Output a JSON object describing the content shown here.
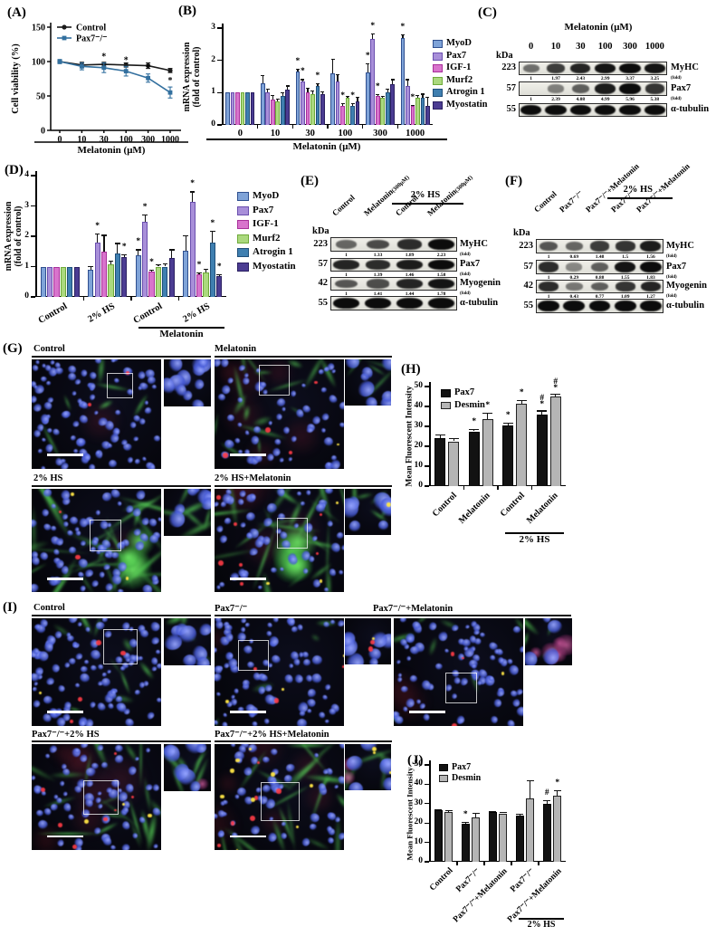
{
  "figure": {
    "panels": {
      "A": {
        "label": "(A)",
        "chart_data": {
          "type": "line",
          "ylabel": "Cell viability (%)",
          "xlabel": "Melatonin (μM)",
          "ylim": [
            0,
            150
          ],
          "yticks": [
            0,
            50,
            100,
            150
          ],
          "x_labels": [
            "0",
            "10",
            "30",
            "100",
            "300",
            "1000"
          ],
          "series": [
            {
              "name": "Control",
              "color": "#1a1a1a",
              "marker": "circle",
              "values": [
                100,
                95,
                96,
                95,
                94,
                87
              ],
              "err": [
                2,
                4,
                3,
                3,
                4,
                3
              ]
            },
            {
              "name": "Pax7⁻/⁻",
              "color": "#33709f",
              "marker": "square",
              "values": [
                100,
                93,
                91,
                86,
                76,
                55
              ],
              "err": [
                3,
                5,
                7,
                7,
                6,
                8
              ],
              "sig": [
                null,
                null,
                "*",
                "*",
                "*",
                "*"
              ]
            }
          ]
        }
      },
      "B": {
        "label": "(B)",
        "chart_data": {
          "type": "grouped_bar",
          "ylabel_lines": [
            "mRNA expression",
            "(fold of control)"
          ],
          "xlabel": "Melatonin (μM)",
          "ylim": [
            0,
            3
          ],
          "yticks": [
            0,
            1,
            2,
            3
          ],
          "series": [
            {
              "name": "MyoD",
              "fill": "#7fa3d8",
              "border": "#2f4f8f"
            },
            {
              "name": "Pax7",
              "fill": "#a88fd9",
              "border": "#6a4fae"
            },
            {
              "name": "IGF-1",
              "fill": "#d873cc",
              "border": "#a8309a"
            },
            {
              "name": "Murf2",
              "fill": "#abd97e",
              "border": "#6faa3a"
            },
            {
              "name": "Atrogin 1",
              "fill": "#3f7fb0",
              "border": "#1f4f7a"
            },
            {
              "name": "Myostatin",
              "fill": "#4b3c92",
              "border": "#2a1f60"
            }
          ],
          "groups": [
            {
              "label": "0",
              "values": [
                1,
                1,
                1,
                1,
                1,
                1
              ],
              "err": [
                0,
                0,
                0,
                0,
                0,
                0
              ]
            },
            {
              "label": "10",
              "values": [
                1.3,
                1.0,
                0.78,
                0.72,
                0.9,
                1.1
              ],
              "err": [
                0.25,
                0.12,
                0.15,
                0.1,
                0.12,
                0.12
              ]
            },
            {
              "label": "30",
              "values": [
                1.65,
                1.35,
                1.0,
                0.95,
                1.2,
                0.95
              ],
              "err": [
                0.1,
                0.07,
                0.15,
                0.12,
                0.1,
                0.1
              ],
              "sig": [
                "*",
                "*",
                null,
                null,
                "*",
                null
              ]
            },
            {
              "label": "100",
              "values": [
                1.6,
                1.35,
                0.6,
                0.83,
                0.6,
                0.73
              ],
              "err": [
                0.45,
                0.22,
                0.08,
                0.08,
                0.07,
                0.15
              ],
              "sig": [
                null,
                null,
                "*",
                null,
                "*",
                null
              ]
            },
            {
              "label": "300",
              "values": [
                1.62,
                2.65,
                0.9,
                0.83,
                1.02,
                1.27
              ],
              "err": [
                0.3,
                0.18,
                0.06,
                0.08,
                0.1,
                0.15
              ],
              "sig": [
                "*",
                "*",
                "*",
                null,
                null,
                null
              ]
            },
            {
              "label": "1000",
              "values": [
                2.7,
                1.2,
                0.58,
                0.83,
                0.85,
                0.58
              ],
              "err": [
                0.1,
                0.22,
                0.05,
                0.1,
                0.12,
                0.3
              ],
              "sig": [
                "*",
                null,
                "*",
                null,
                null,
                null
              ]
            }
          ]
        }
      },
      "C": {
        "label": "(C)",
        "blot": {
          "header_title": "Melatonin (μM)",
          "kda_label": "kDa",
          "fold_label": "(fold)",
          "lanes": [
            "0",
            "10",
            "30",
            "100",
            "300",
            "1000"
          ],
          "rows": [
            {
              "kda": "223",
              "label": "MyHC",
              "intensity": [
                0.4,
                0.7,
                0.85,
                0.95,
                1,
                0.95
              ],
              "folds": [
                "1",
                "1.97",
                "2.43",
                "2.99",
                "3.37",
                "3.25"
              ]
            },
            {
              "kda": "57",
              "label": "Pax7",
              "intensity": [
                0.04,
                0.3,
                0.5,
                0.9,
                1,
                0.75
              ],
              "folds": [
                "1",
                "2.39",
                "4.08",
                "4.99",
                "5.96",
                "5.38"
              ]
            },
            {
              "kda": "55",
              "label": "α-tubulin",
              "intensity": [
                1,
                1,
                1,
                1,
                1,
                1
              ],
              "folds": null
            }
          ]
        }
      },
      "D": {
        "label": "(D)",
        "chart_data": {
          "type": "grouped_bar",
          "ylabel_lines": [
            "mRNA expression",
            "(fold of control)"
          ],
          "ylim": [
            0,
            4
          ],
          "yticks": [
            0,
            1,
            2,
            3,
            4
          ],
          "series": [
            {
              "name": "MyoD",
              "fill": "#7fa3d8",
              "border": "#2f4f8f"
            },
            {
              "name": "Pax7",
              "fill": "#a88fd9",
              "border": "#6a4fae"
            },
            {
              "name": "IGF-1",
              "fill": "#d873cc",
              "border": "#a8309a"
            },
            {
              "name": "Murf2",
              "fill": "#abd97e",
              "border": "#6faa3a"
            },
            {
              "name": "Atrogin 1",
              "fill": "#3f7fb0",
              "border": "#1f4f7a"
            },
            {
              "name": "Myostatin",
              "fill": "#4b3c92",
              "border": "#2a1f60"
            }
          ],
          "groups": [
            {
              "label": "Control",
              "values": [
                1,
                1,
                1,
                1,
                1,
                1
              ],
              "err": [
                0,
                0,
                0,
                0,
                0,
                0
              ]
            },
            {
              "label": "2% HS",
              "values": [
                0.9,
                1.8,
                1.5,
                1.07,
                1.43,
                1.3
              ],
              "err": [
                0.12,
                0.3,
                0.55,
                0.12,
                0.35,
                0.1
              ],
              "sig": [
                null,
                "*",
                null,
                null,
                null,
                "*"
              ]
            },
            {
              "label": "Control",
              "values": [
                1.37,
                2.48,
                0.83,
                1.0,
                1.0,
                1.27
              ],
              "err": [
                0.2,
                0.25,
                0.08,
                0.08,
                0.1,
                0.3
              ],
              "sig": [
                "*",
                "*",
                "*",
                null,
                null,
                null
              ]
            },
            {
              "label": "2% HS",
              "values": [
                1.53,
                3.13,
                0.75,
                0.82,
                1.78,
                0.7
              ],
              "err": [
                0.5,
                0.35,
                0.05,
                0.1,
                0.4,
                0.06
              ],
              "sig": [
                null,
                "*",
                "*",
                null,
                "*",
                "*"
              ]
            }
          ],
          "bracket": {
            "label": "Melatonin",
            "from": 2,
            "to": 3
          }
        }
      },
      "E": {
        "label": "(E)",
        "blot": {
          "kda_label": "kDa",
          "fold_label": "(fold)",
          "bracket": {
            "label": "2% HS",
            "from": 2,
            "to": 3
          },
          "lanes": [
            {
              "t": "Control"
            },
            {
              "t": "Melatonin",
              "s": "(300μM)"
            },
            {
              "t": "Control"
            },
            {
              "t": "Melatonin",
              "s": "(300μM)"
            }
          ],
          "rows": [
            {
              "kda": "223",
              "label": "MyHC",
              "intensity": [
                0.45,
                0.62,
                0.8,
                1
              ],
              "folds": [
                "1",
                "1.33",
                "1.89",
                "2.23"
              ]
            },
            {
              "kda": "57",
              "label": "Pax7",
              "intensity": [
                0.85,
                0.8,
                0.9,
                1
              ],
              "folds": [
                "1",
                "1.39",
                "1.46",
                "1.58"
              ]
            },
            {
              "kda": "42",
              "label": "Myogenin",
              "intensity": [
                0.55,
                0.6,
                0.85,
                0.95
              ],
              "folds": [
                "1",
                "1.41",
                "1.44",
                "1.78"
              ]
            },
            {
              "kda": "55",
              "label": "α-tubulin",
              "intensity": [
                1,
                1,
                1,
                1
              ],
              "folds": null
            }
          ]
        }
      },
      "F": {
        "label": "(F)",
        "blot": {
          "kda_label": "kDa",
          "fold_label": "(fold)",
          "bracket": {
            "label": "2% HS",
            "from": 3,
            "to": 4
          },
          "lanes": [
            {
              "t": "Control"
            },
            {
              "t": "Pax7⁻/⁻"
            },
            {
              "t": "Pax7⁻/⁻+Melatonin"
            },
            {
              "t": "Pax7⁻/⁻"
            },
            {
              "t": "Pax7⁻/⁻+Melatonin"
            }
          ],
          "rows": [
            {
              "kda": "223",
              "label": "MyHC",
              "intensity": [
                0.55,
                0.45,
                0.7,
                0.75,
                0.9
              ],
              "folds": [
                "1",
                "0.69",
                "1.48",
                "1.5",
                "1.56"
              ]
            },
            {
              "kda": "57",
              "label": "Pax7",
              "intensity": [
                0.8,
                0.25,
                0.5,
                0.95,
                1
              ],
              "folds": [
                "1",
                "0.29",
                "0.88",
                "1.55",
                "1.83"
              ]
            },
            {
              "kda": "42",
              "label": "Myogenin",
              "intensity": [
                0.8,
                0.35,
                0.5,
                0.75,
                0.85
              ],
              "folds": [
                "1",
                "0.43",
                "0.77",
                "1.09",
                "1.27"
              ]
            },
            {
              "kda": "55",
              "label": "α-tubulin",
              "intensity": [
                1,
                1,
                1,
                1,
                1
              ],
              "folds": null
            }
          ]
        }
      },
      "G": {
        "label": "(G)",
        "images": [
          {
            "title": "Control"
          },
          {
            "title": "Melatonin"
          },
          {
            "title": "2% HS"
          },
          {
            "title": "2% HS+Melatonin"
          }
        ]
      },
      "H": {
        "label": "(H)",
        "chart_data": {
          "type": "grouped_bar",
          "ylabel_lines": [
            "Mean Fluorescent Intensity"
          ],
          "ylim": [
            0,
            50
          ],
          "yticks": [
            0,
            10,
            20,
            30,
            40,
            50
          ],
          "series": [
            {
              "name": "Pax7",
              "fill": "#121212",
              "border": "#000000"
            },
            {
              "name": "Desmin",
              "fill": "#b5b5b5",
              "border": "#222222"
            }
          ],
          "groups": [
            {
              "label": "Control",
              "values": [
                24,
                22.5
              ],
              "err": [
                1.8,
                1.5
              ]
            },
            {
              "label": "Melatonin",
              "values": [
                27.5,
                33.5
              ],
              "err": [
                1,
                3.5
              ],
              "sig": [
                "*",
                "*"
              ]
            },
            {
              "label": "Control",
              "values": [
                30.5,
                41.5
              ],
              "err": [
                1.5,
                1.8
              ],
              "sig": [
                "*",
                "*"
              ]
            },
            {
              "label": "Melatonin",
              "values": [
                36,
                45
              ],
              "err": [
                2,
                1.5
              ],
              "sig": [
                "#\n*",
                "#\n*"
              ]
            }
          ],
          "bracket": {
            "label": "2% HS",
            "from": 2,
            "to": 3
          }
        }
      },
      "I": {
        "label": "(I)",
        "images": [
          {
            "title": "Control"
          },
          {
            "title": "Pax7⁻/⁻"
          },
          {
            "title": "Pax7⁻/⁻+Melatonin"
          },
          {
            "title": "Pax7⁻/⁻+2% HS"
          },
          {
            "title": "Pax7⁻/⁻+2% HS+Melatonin"
          }
        ]
      },
      "J": {
        "label": "(J)",
        "chart_data": {
          "type": "grouped_bar",
          "ylabel_lines": [
            "Mean Fluorescent Intensity"
          ],
          "ylim": [
            0,
            50
          ],
          "yticks": [
            0,
            10,
            20,
            30,
            40,
            50
          ],
          "series": [
            {
              "name": "Pax7",
              "fill": "#121212",
              "border": "#000000"
            },
            {
              "name": "Desmin",
              "fill": "#b5b5b5",
              "border": "#222222"
            }
          ],
          "groups": [
            {
              "label": "Control",
              "values": [
                26.5,
                25.5
              ],
              "err": [
                0.8,
                1.2
              ]
            },
            {
              "label": "Pax7⁻/⁻",
              "values": [
                19.5,
                23
              ],
              "err": [
                1.2,
                2.2
              ],
              "sig": [
                "*",
                null
              ]
            },
            {
              "label": "Pax7⁻/⁻+Melatonin",
              "values": [
                25.5,
                25
              ],
              "err": [
                0.8,
                0.8
              ]
            },
            {
              "label": "Pax7⁻/⁻",
              "values": [
                24,
                32.5
              ],
              "err": [
                1,
                9.5
              ]
            },
            {
              "label": "Pax7⁻/⁻+Melatonin",
              "values": [
                30,
                34
              ],
              "err": [
                2,
                3
              ],
              "sig": [
                "#",
                "*"
              ]
            }
          ],
          "bracket": {
            "label": "2% HS",
            "from": 3,
            "to": 4
          }
        }
      }
    }
  }
}
